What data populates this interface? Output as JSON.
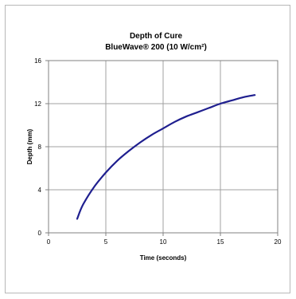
{
  "chart_data": {
    "type": "line",
    "title": "Depth of Cure",
    "subtitle": "BlueWave® 200 (10 W/cm²)",
    "xlabel": "Time (seconds)",
    "ylabel": "Depth (mm)",
    "xlim": [
      0,
      20
    ],
    "ylim": [
      0,
      16
    ],
    "xticks": [
      0,
      5,
      10,
      15,
      20
    ],
    "yticks": [
      0,
      4,
      8,
      12,
      16
    ],
    "grid": true,
    "line_color": "#1f1f8f",
    "series": [
      {
        "x": [
          2.5,
          3,
          4,
          5,
          6,
          7,
          8,
          9,
          10,
          11,
          12,
          13,
          14,
          15,
          16,
          17,
          18
        ],
        "values": [
          1.3,
          2.6,
          4.3,
          5.6,
          6.7,
          7.6,
          8.4,
          9.1,
          9.7,
          10.3,
          10.8,
          11.2,
          11.6,
          12.0,
          12.3,
          12.6,
          12.8
        ]
      }
    ]
  }
}
